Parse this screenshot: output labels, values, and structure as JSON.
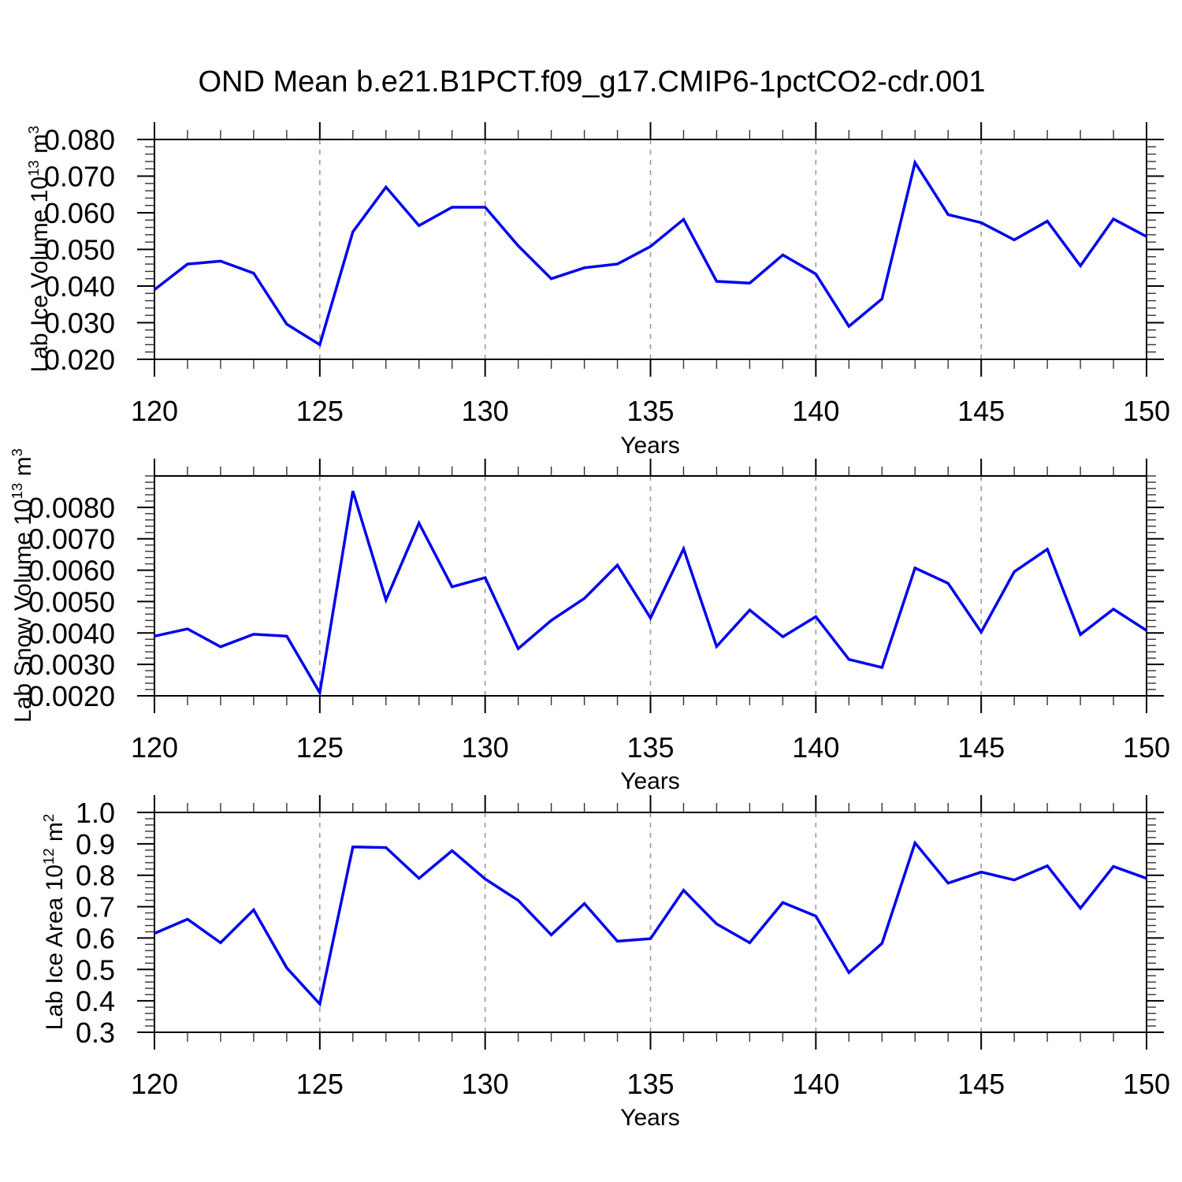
{
  "page": {
    "background": "#ffffff",
    "title": "OND Mean b.e21.B1PCT.f09_g17.CMIP6-1pctCO2-cdr.001"
  },
  "style": {
    "line_color": "#0000ee",
    "axis_color": "#000000",
    "minor_tick_color": "#333333",
    "grid_color": "#999999",
    "text_color": "#000000"
  },
  "x_axis": {
    "label": "Years",
    "min": 120,
    "max": 150,
    "major_ticks": [
      120,
      125,
      130,
      135,
      140,
      145,
      150
    ],
    "major_tick_labels": [
      "120",
      "125",
      "130",
      "135",
      "140",
      "145",
      "150"
    ],
    "minor_step": 1,
    "gridline_years": [
      125,
      130,
      135,
      140,
      145
    ],
    "years": [
      120,
      121,
      122,
      123,
      124,
      125,
      126,
      127,
      128,
      129,
      130,
      131,
      132,
      133,
      134,
      135,
      136,
      137,
      138,
      139,
      140,
      141,
      142,
      143,
      144,
      145,
      146,
      147,
      148,
      149,
      150
    ]
  },
  "chart_data": [
    {
      "type": "line",
      "name": "lab-ice-volume",
      "ylabel": {
        "prefix": "Lab Ice Volume 10",
        "exp": "13",
        "mid": " m",
        "exp2": "3"
      },
      "ylim": [
        0.02,
        0.08
      ],
      "yminor_step": 0.002,
      "yticks": [
        {
          "v": 0.08,
          "label": "0.080"
        },
        {
          "v": 0.07,
          "label": "0.070"
        },
        {
          "v": 0.06,
          "label": "0.060"
        },
        {
          "v": 0.05,
          "label": "0.050"
        },
        {
          "v": 0.04,
          "label": "0.040"
        },
        {
          "v": 0.03,
          "label": "0.030"
        },
        {
          "v": 0.02,
          "label": "0.020"
        }
      ],
      "values": [
        0.039,
        0.046,
        0.0468,
        0.0435,
        0.0296,
        0.024,
        0.0548,
        0.067,
        0.0565,
        0.0615,
        0.0615,
        0.051,
        0.042,
        0.045,
        0.046,
        0.0508,
        0.0582,
        0.0413,
        0.0408,
        0.0485,
        0.0433,
        0.029,
        0.0365,
        0.0737,
        0.0595,
        0.0573,
        0.0526,
        0.0577,
        0.0455,
        0.0583,
        0.0535
      ]
    },
    {
      "type": "line",
      "name": "lab-snow-volume",
      "ylabel": {
        "prefix": "Lab Snow Volume 10",
        "exp": "13",
        "mid": " m",
        "exp2": "3"
      },
      "ylim": [
        0.002,
        0.009
      ],
      "yminor_step": 0.0002,
      "yticks": [
        {
          "v": 0.008,
          "label": "0.0080"
        },
        {
          "v": 0.007,
          "label": "0.0070"
        },
        {
          "v": 0.006,
          "label": "0.0060"
        },
        {
          "v": 0.005,
          "label": "0.0050"
        },
        {
          "v": 0.004,
          "label": "0.0040"
        },
        {
          "v": 0.003,
          "label": "0.0030"
        },
        {
          "v": 0.002,
          "label": "0.0020"
        }
      ],
      "values": [
        0.0039,
        0.00413,
        0.00356,
        0.00396,
        0.0039,
        0.0021,
        0.00852,
        0.00505,
        0.0075,
        0.00547,
        0.00576,
        0.0035,
        0.0044,
        0.0051,
        0.00616,
        0.00448,
        0.00668,
        0.00357,
        0.00473,
        0.00388,
        0.00452,
        0.00316,
        0.0029,
        0.00607,
        0.00558,
        0.00403,
        0.00595,
        0.00667,
        0.00395,
        0.00476,
        0.00408
      ]
    },
    {
      "type": "line",
      "name": "lab-ice-area",
      "ylabel": {
        "prefix": "Lab Ice Area 10",
        "exp": "12",
        "mid": " m",
        "exp2": "2"
      },
      "ylim": [
        0.3,
        1.0
      ],
      "yminor_step": 0.02,
      "yticks": [
        {
          "v": 1.0,
          "label": "1.0"
        },
        {
          "v": 0.9,
          "label": "0.9"
        },
        {
          "v": 0.8,
          "label": "0.8"
        },
        {
          "v": 0.7,
          "label": "0.7"
        },
        {
          "v": 0.6,
          "label": "0.6"
        },
        {
          "v": 0.5,
          "label": "0.5"
        },
        {
          "v": 0.4,
          "label": "0.4"
        },
        {
          "v": 0.3,
          "label": "0.3"
        }
      ],
      "values": [
        0.615,
        0.66,
        0.585,
        0.69,
        0.505,
        0.39,
        0.89,
        0.888,
        0.79,
        0.878,
        0.788,
        0.72,
        0.61,
        0.71,
        0.59,
        0.598,
        0.752,
        0.645,
        0.585,
        0.713,
        0.67,
        0.49,
        0.583,
        0.903,
        0.775,
        0.81,
        0.785,
        0.83,
        0.695,
        0.828,
        0.79
      ]
    }
  ]
}
